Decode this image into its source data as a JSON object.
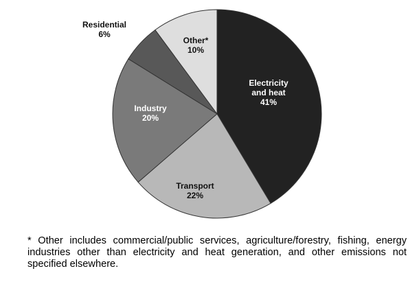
{
  "chart_data": {
    "type": "pie",
    "slices": [
      {
        "label_lines": [
          "Electricity",
          "and heat"
        ],
        "percent_text": "41%",
        "value": 41,
        "color": "#222222",
        "text_color": "#ffffff"
      },
      {
        "label_lines": [
          "Transport"
        ],
        "percent_text": "22%",
        "value": 22,
        "color": "#b8b8b8",
        "text_color": "#111111"
      },
      {
        "label_lines": [
          "Industry"
        ],
        "percent_text": "20%",
        "value": 20,
        "color": "#7a7a7a",
        "text_color": "#ffffff"
      },
      {
        "label_lines": [
          "Residential"
        ],
        "percent_text": "6%",
        "value": 6,
        "color": "#585858",
        "text_color": "#111111"
      },
      {
        "label_lines": [
          "Other*"
        ],
        "percent_text": "10%",
        "value": 10,
        "color": "#dedede",
        "text_color": "#111111"
      }
    ]
  },
  "footnote": "* Other includes commercial/public services, agriculture/forestry, fishing, energy industries other than electricity and heat generation, and other emissions not specified elsewhere."
}
